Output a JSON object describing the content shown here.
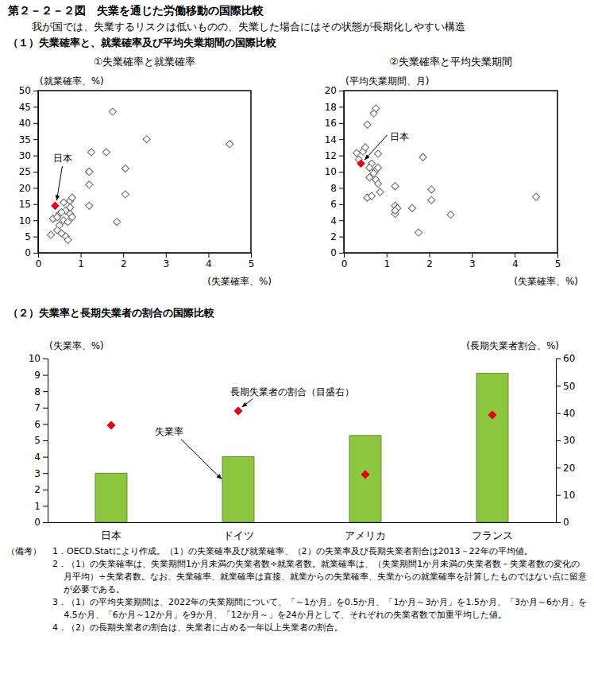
{
  "title": "第２－２－２図　失業を通じた労働移動の国際比較",
  "subtitle": "我が国では、失業するリスクは低いものの、失業した場合にはその状態が長期化しやすい構造",
  "sections": [
    "（１）失業確率と、就業確率及び平均失業期間の国際比較",
    "（２）失業率と長期失業者の割合の国際比較"
  ],
  "notes": {
    "label": "（備考）",
    "items": [
      "1．OECD.Statにより作成。（1）の失業確率及び就業確率、（2）の失業率及び長期失業者割合は2013－22年の平均値。",
      "2．（1）の失業確率は、失業期間1か月未満の失業者数÷就業者数。就業確率は、（失業期間1か月未満の失業者数－失業者数の変化の月平均）÷失業者数。なお、失業確率、就業確率は直接、就業からの失業確率、失業からの就業確率を計算したものではない点に留意が必要である。",
      "3．（1）の平均失業期間は、2022年の失業期間について、「～1か月」を0.5か月、「1か月～3か月」を1.5か月、「3か月～6か月」を4.5か月、「6か月～12か月」を9か月、「12か月～」を24か月として、それぞれの失業者数で加重平均した値。",
      "4．（2）の長期失業者の割合は、失業者に占める一年以上失業者の割合。"
    ]
  },
  "chart_data": [
    {
      "type": "scatter",
      "title": "①失業確率と就業確率",
      "x_label": "(失業確率、%)",
      "y_label": "(就業確率、%)",
      "x": [
        0.4,
        0.3,
        0.35,
        0.45,
        0.5,
        0.5,
        0.55,
        0.6,
        0.6,
        0.65,
        0.65,
        0.7,
        0.7,
        0.75,
        0.75,
        0.75,
        0.8,
        0.8,
        0.55,
        0.45,
        1.2,
        1.2,
        1.2,
        1.2,
        1.25,
        1.6,
        1.75,
        1.85,
        2.05,
        2.05,
        2.55,
        4.5
      ],
      "values": [
        14.5,
        5.5,
        10.5,
        7,
        12,
        8.5,
        6,
        15.5,
        10,
        5,
        13,
        9.5,
        4,
        16,
        12,
        14,
        17,
        11,
        12.5,
        11,
        14.5,
        21,
        25,
        25,
        31,
        31,
        43.5,
        9.5,
        18,
        26,
        35,
        33.5
      ],
      "colors": [
        "#e60012",
        "#ffffff",
        "#ffffff",
        "#ffffff",
        "#ffffff",
        "#ffffff",
        "#ffffff",
        "#ffffff",
        "#ffffff",
        "#ffffff",
        "#ffffff",
        "#ffffff",
        "#ffffff",
        "#ffffff",
        "#ffffff",
        "#ffffff",
        "#ffffff",
        "#ffffff",
        "#ffffff",
        "#ffffff",
        "#ffffff",
        "#ffffff",
        "#ffffff",
        "#ffffff",
        "#ffffff",
        "#ffffff",
        "#ffffff",
        "#ffffff",
        "#ffffff",
        "#ffffff",
        "#ffffff",
        "#ffffff"
      ],
      "marker": "diamond",
      "xlim": [
        0,
        5
      ],
      "xticks": [
        0,
        1,
        2,
        3,
        4,
        5
      ],
      "ylim": [
        0,
        50
      ],
      "yticks": [
        0,
        5,
        10,
        15,
        20,
        25,
        30,
        35,
        40,
        45,
        50
      ],
      "annotations": [
        {
          "text": "日本",
          "x": 0.4,
          "y": 14.5
        }
      ]
    },
    {
      "type": "scatter",
      "title": "②失業確率と平均失業期間",
      "x_label": "(失業確率、%)",
      "y_label": "(平均失業期間、月)",
      "x": [
        0.4,
        0.3,
        0.35,
        0.45,
        0.5,
        0.55,
        0.6,
        0.55,
        0.65,
        0.7,
        0.75,
        0.75,
        0.7,
        0.8,
        0.65,
        0.8,
        0.75,
        0.8,
        0.6,
        0.85,
        1.2,
        1.2,
        1.25,
        1.2,
        1.2,
        1.6,
        1.75,
        1.85,
        2.05,
        2.05,
        2.5,
        4.5
      ],
      "values": [
        11,
        12.3,
        11.5,
        12.5,
        13,
        15.8,
        9.3,
        6.8,
        7,
        17.2,
        17.8,
        10.2,
        9.8,
        10.5,
        11,
        12.2,
        9,
        8.5,
        10.5,
        7.5,
        8.2,
        5.8,
        5.5,
        4.8,
        5.2,
        5.5,
        2.5,
        11.8,
        7.8,
        6.5,
        4.7,
        6.9
      ],
      "colors": [
        "#e60012",
        "#ffffff",
        "#ffffff",
        "#ffffff",
        "#ffffff",
        "#ffffff",
        "#ffffff",
        "#ffffff",
        "#ffffff",
        "#ffffff",
        "#ffffff",
        "#ffffff",
        "#ffffff",
        "#ffffff",
        "#ffffff",
        "#ffffff",
        "#ffffff",
        "#ffffff",
        "#ffffff",
        "#ffffff",
        "#ffffff",
        "#ffffff",
        "#ffffff",
        "#ffffff",
        "#ffffff",
        "#ffffff",
        "#ffffff",
        "#ffffff",
        "#ffffff",
        "#ffffff",
        "#ffffff",
        "#ffffff"
      ],
      "marker": "diamond",
      "xlim": [
        0,
        5
      ],
      "xticks": [
        0,
        1,
        2,
        3,
        4,
        5
      ],
      "ylim": [
        0,
        20
      ],
      "yticks": [
        0,
        2,
        4,
        6,
        8,
        10,
        12,
        14,
        16,
        18,
        20
      ],
      "annotations": [
        {
          "text": "日本",
          "x": 0.4,
          "y": 11
        }
      ]
    },
    {
      "type": "bar",
      "y_label": "(失業率、%)",
      "y2_label": "(長期失業者割合、%)",
      "categories": [
        "日本",
        "ドイツ",
        "アメリカ",
        "フランス"
      ],
      "series": [
        {
          "name": "失業率",
          "type": "bar",
          "color": "#8dc63f",
          "values": [
            3.0,
            4.0,
            5.3,
            9.1
          ]
        },
        {
          "name": "長期失業者の割合（目盛右）",
          "type": "scatter",
          "marker": "diamond",
          "color": "#e60012",
          "axis": "y2",
          "values": [
            35.5,
            40.8,
            17.5,
            39.3
          ]
        }
      ],
      "ylim": [
        0,
        10
      ],
      "yticks": [
        0,
        1,
        2,
        3,
        4,
        5,
        6,
        7,
        8,
        9,
        10
      ],
      "y2lim": [
        0,
        60
      ],
      "y2ticks": [
        0,
        10,
        20,
        30,
        40,
        50,
        60
      ]
    }
  ]
}
